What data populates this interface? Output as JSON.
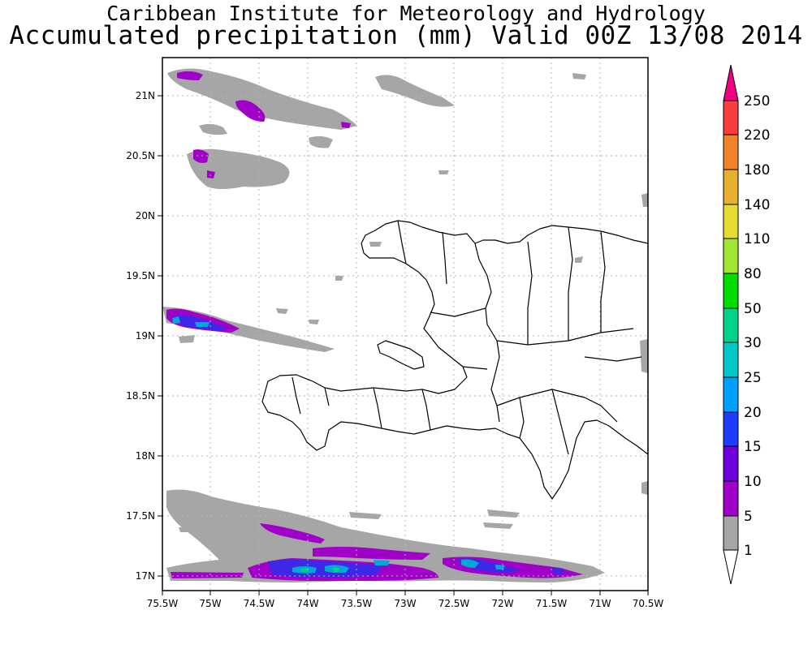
{
  "header": {
    "line1": "Caribbean Institute for Meteorology and Hydrology",
    "line2": "Accumulated precipitation (mm) Valid 00Z 13/08 2014"
  },
  "map": {
    "latitude_labels": [
      "21N",
      "20.5N",
      "20N",
      "19.5N",
      "19N",
      "18.5N",
      "18N",
      "17.5N",
      "17N"
    ],
    "longitude_labels": [
      "75.5W",
      "75W",
      "74.5W",
      "74W",
      "73.5W",
      "73W",
      "72.5W",
      "72W",
      "71.5W",
      "71W",
      "70.5W"
    ]
  },
  "legend": {
    "colors": [
      "#ffffff",
      "#a6a6a6",
      "#a000c8",
      "#6e00dc",
      "#1e3cff",
      "#00a0ff",
      "#00c8c8",
      "#00d28c",
      "#00dc00",
      "#a0e632",
      "#e6dc32",
      "#e6af2d",
      "#f08228",
      "#fa3c3c",
      "#f00082"
    ],
    "labels": [
      "1",
      "5",
      "10",
      "15",
      "20",
      "25",
      "30",
      "50",
      "80",
      "110",
      "140",
      "180",
      "220",
      "250"
    ]
  }
}
